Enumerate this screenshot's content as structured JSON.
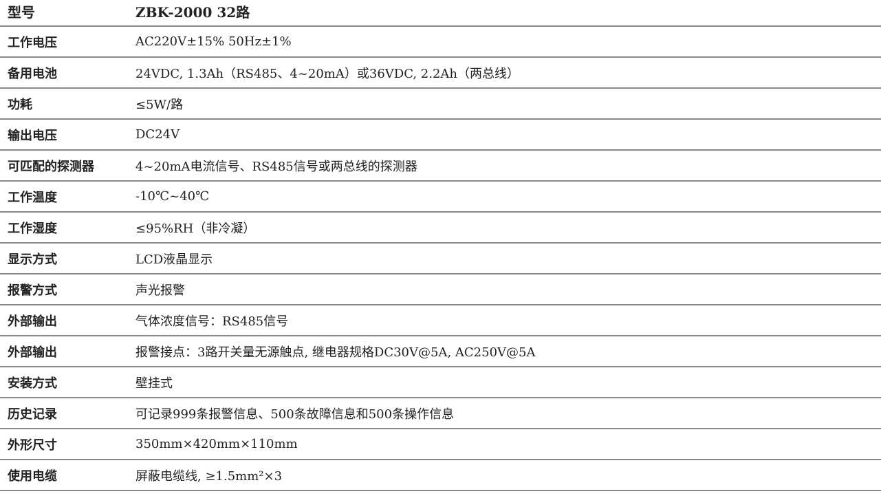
{
  "rows": [
    {
      "label": "型号",
      "value": "ZBK-2000 32路"
    },
    {
      "label": "工作电压",
      "value": "AC220V±15% 50Hz±1%"
    },
    {
      "label": "备用电池",
      "value": "24VDC, 1.3Ah（RS485、4~20mA）或36VDC, 2.2Ah（两总线）"
    },
    {
      "label": "功耗",
      "value": "≤5W/路"
    },
    {
      "label": "输出电压",
      "value": "DC24V"
    },
    {
      "label": "可匹配的探测器",
      "value": "4~20mA电流信号、RS485信号或两总线的探测器"
    },
    {
      "label": "工作温度",
      "value": "-10℃~40℃"
    },
    {
      "label": "工作湿度",
      "value": "≤95%RH（非冷凝）"
    },
    {
      "label": "显示方式",
      "value": "LCD液晶显示"
    },
    {
      "label": "报警方式",
      "value": "声光报警"
    },
    {
      "label": "外部输出",
      "value": "气体浓度信号：RS485信号"
    },
    {
      "label": "外部输出",
      "value": "报警接点：3路开关量无源触点, 继电器规格DC30V@5A, AC250V@5A"
    },
    {
      "label": "安装方式",
      "value": "壁挂式"
    },
    {
      "label": "历史记录",
      "value": "可记录999条报警信息、500条故障信息和500条操作信息"
    },
    {
      "label": "外形尺寸",
      "value": "350mm×420mm×110mm"
    },
    {
      "label": "使用电缆",
      "value": "屏蔽电缆线, ≥1.5mm²×3"
    }
  ]
}
